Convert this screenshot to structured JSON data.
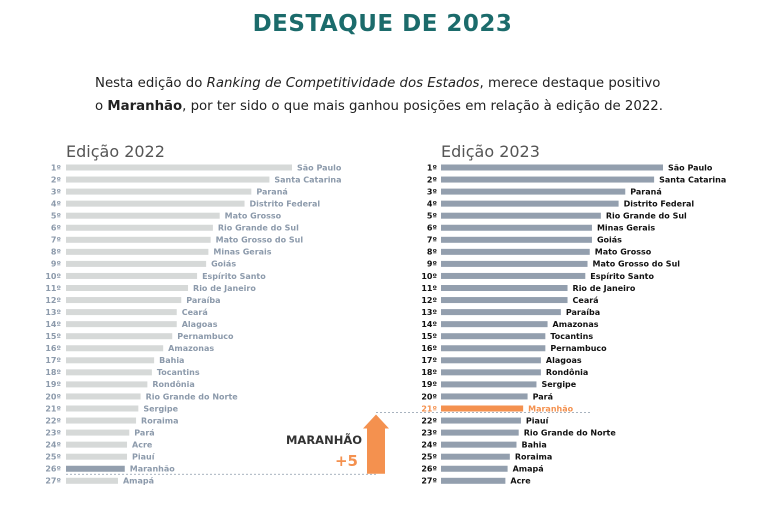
{
  "title": "DESTAQUE DE 2023",
  "intro": {
    "p1": "Nesta edição do ",
    "p2": "Ranking de Competitividade dos Estados",
    "p3": ", merece destaque positivo",
    "p4": "o ",
    "p5": "Maranhão",
    "p6": ", por ter sido o que mais ganhou posições em relação à edição de 2022."
  },
  "colors": {
    "title": "#1b6b6b",
    "bar_2022": "#d6d9d8",
    "text_2022": "#8c9aab",
    "bar_2023": "#939fae",
    "text_2023": "#111111",
    "highlight_2023": "#f4914f",
    "highlight_2022": "#939fae",
    "arrow": "#f4914f"
  },
  "highlight": {
    "label": "MARANHÃO",
    "value": "+5"
  },
  "chart_data": [
    {
      "type": "bar",
      "title": "Edição 2022",
      "ranks": [
        "1º",
        "2º",
        "3º",
        "4º",
        "5º",
        "6º",
        "7º",
        "8º",
        "9º",
        "10º",
        "11º",
        "12º",
        "13º",
        "14º",
        "15º",
        "16º",
        "17º",
        "18º",
        "19º",
        "20º",
        "21º",
        "22º",
        "23º",
        "24º",
        "25º",
        "26º",
        "27º"
      ],
      "categories": [
        "São Paulo",
        "Santa Catarina",
        "Paraná",
        "Distrito Federal",
        "Mato Grosso",
        "Rio Grande do Sul",
        "Mato Grosso do Sul",
        "Minas Gerais",
        "Goiás",
        "Espírito Santo",
        "Rio de Janeiro",
        "Paraíba",
        "Ceará",
        "Alagoas",
        "Pernambuco",
        "Amazonas",
        "Bahia",
        "Tocantins",
        "Rondônia",
        "Rio Grande do Norte",
        "Sergipe",
        "Roraima",
        "Pará",
        "Acre",
        "Piauí",
        "Maranhão",
        "Amapá"
      ],
      "values": [
        100,
        90,
        82,
        79,
        68,
        65,
        64,
        63,
        62,
        58,
        54,
        51,
        49,
        49,
        47,
        43,
        39,
        38,
        36,
        33,
        32,
        31,
        28,
        27,
        27,
        26,
        23
      ],
      "highlight_index": 25
    },
    {
      "type": "bar",
      "title": "Edição 2023",
      "ranks": [
        "1º",
        "2º",
        "3º",
        "4º",
        "5º",
        "6º",
        "7º",
        "8º",
        "9º",
        "10º",
        "11º",
        "12º",
        "13º",
        "14º",
        "15º",
        "16º",
        "17º",
        "18º",
        "19º",
        "20º",
        "21º",
        "22º",
        "23º",
        "24º",
        "25º",
        "26º",
        "27º"
      ],
      "categories": [
        "São Paulo",
        "Santa Catarina",
        "Paraná",
        "Distrito Federal",
        "Rio Grande do Sul",
        "Minas Gerais",
        "Goiás",
        "Mato Grosso",
        "Mato Grosso do Sul",
        "Espírito Santo",
        "Rio de Janeiro",
        "Ceará",
        "Paraíba",
        "Amazonas",
        "Tocantins",
        "Pernambuco",
        "Alagoas",
        "Rondônia",
        "Sergipe",
        "Pará",
        "Maranhão",
        "Piauí",
        "Rio Grande do Norte",
        "Bahia",
        "Roraima",
        "Amapá",
        "Acre"
      ],
      "values": [
        100,
        96,
        83,
        80,
        72,
        68,
        68,
        67,
        66,
        65,
        57,
        57,
        54,
        48,
        47,
        47,
        45,
        45,
        43,
        39,
        37,
        36,
        35,
        34,
        31,
        30,
        29
      ],
      "highlight_index": 20
    }
  ]
}
